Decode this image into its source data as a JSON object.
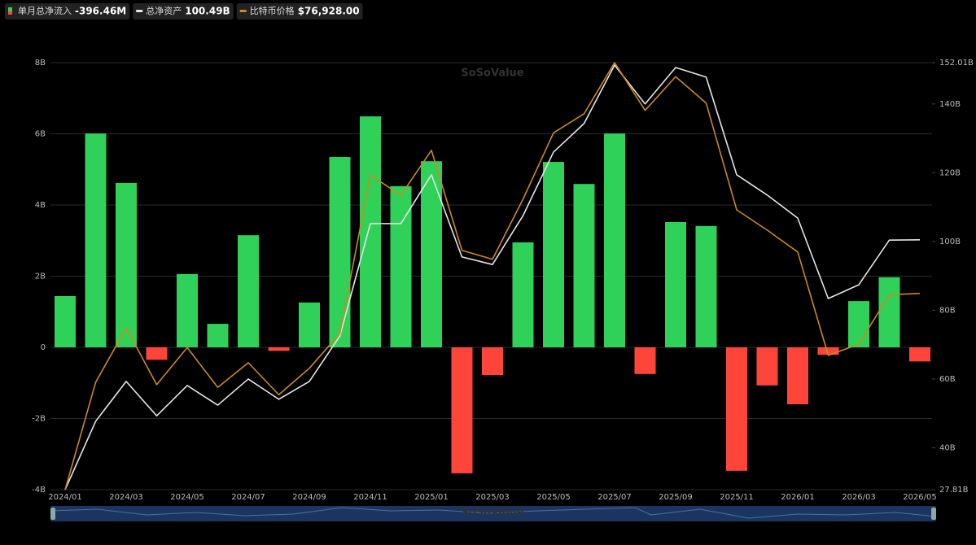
{
  "chart_data": {
    "type": "bar",
    "watermark": "SoSoValue",
    "categories": [
      "2024/01",
      null,
      "2024/03",
      null,
      "2024/05",
      null,
      "2024/07",
      null,
      "2024/09",
      null,
      "2024/11",
      null,
      "2025/01",
      null,
      "2025/03",
      null,
      "2025/05",
      null,
      "2025/07",
      null,
      "2025/09",
      null,
      "2025/11",
      null,
      "2026/01",
      null,
      "2026/03",
      null,
      "2026/05"
    ],
    "ylim": [
      -4,
      8
    ],
    "yticks": [
      {
        "value": -4,
        "label": "-4B"
      },
      {
        "value": -2,
        "label": "-2B"
      },
      0,
      {
        "value": 2,
        "label": "2B"
      },
      {
        "value": 4,
        "label": "4B"
      },
      {
        "value": 6,
        "label": "6B"
      },
      {
        "value": 8,
        "label": "8B"
      }
    ],
    "y2lim": [
      27.81,
      152.01
    ],
    "y2ticks": [
      {
        "value": 27.81,
        "label": "27.81B"
      },
      {
        "value": 40,
        "label": "40B"
      },
      {
        "value": 60,
        "label": "60B"
      },
      {
        "value": 80,
        "label": "80B"
      },
      {
        "value": 100,
        "label": "100B"
      },
      {
        "value": 120,
        "label": "120B"
      },
      {
        "value": 140,
        "label": "140B"
      },
      {
        "value": 152.01,
        "label": "152.01B"
      }
    ],
    "y3lim": [
      42000,
      118000
    ],
    "grid": true,
    "series": [
      {
        "name": "单月总净流入",
        "legend_value": "-396.46M",
        "type": "bar",
        "color": "#30d158",
        "negative_color": "#ff453a",
        "axis": "y",
        "values": [
          1.44,
          6.01,
          4.62,
          -0.35,
          2.06,
          0.66,
          3.15,
          -0.1,
          1.26,
          5.35,
          6.49,
          4.53,
          5.23,
          -3.54,
          -0.78,
          2.95,
          5.21,
          4.59,
          6.01,
          -0.75,
          3.52,
          3.41,
          -3.47,
          -1.07,
          -1.6,
          -0.21,
          1.3,
          1.97,
          -0.39646
        ]
      },
      {
        "name": "总净资产",
        "legend_value": "100.49B",
        "type": "line",
        "color": "#e6e6e6",
        "axis": "y2",
        "values": [
          27.81,
          47.7,
          59.3,
          49.3,
          58.1,
          52.4,
          60.0,
          54.1,
          59.3,
          72.5,
          105.2,
          105.2,
          119.4,
          95.5,
          93.3,
          107.5,
          126.0,
          134.3,
          151.3,
          140.0,
          150.6,
          147.8,
          119.4,
          113.5,
          106.8,
          83.4,
          87.4,
          100.4,
          100.49
        ]
      },
      {
        "name": "比特币价格",
        "legend_value": "$76,928.00",
        "type": "line",
        "color": "#c98a1f",
        "axis": "y3",
        "values": [
          42000,
          61100,
          70800,
          60700,
          67300,
          60200,
          64600,
          58900,
          63600,
          69800,
          98000,
          94400,
          102400,
          84600,
          83000,
          93700,
          105500,
          108900,
          118000,
          109500,
          115500,
          110800,
          91800,
          88200,
          84300,
          65900,
          67900,
          76700,
          76928
        ]
      }
    ]
  }
}
